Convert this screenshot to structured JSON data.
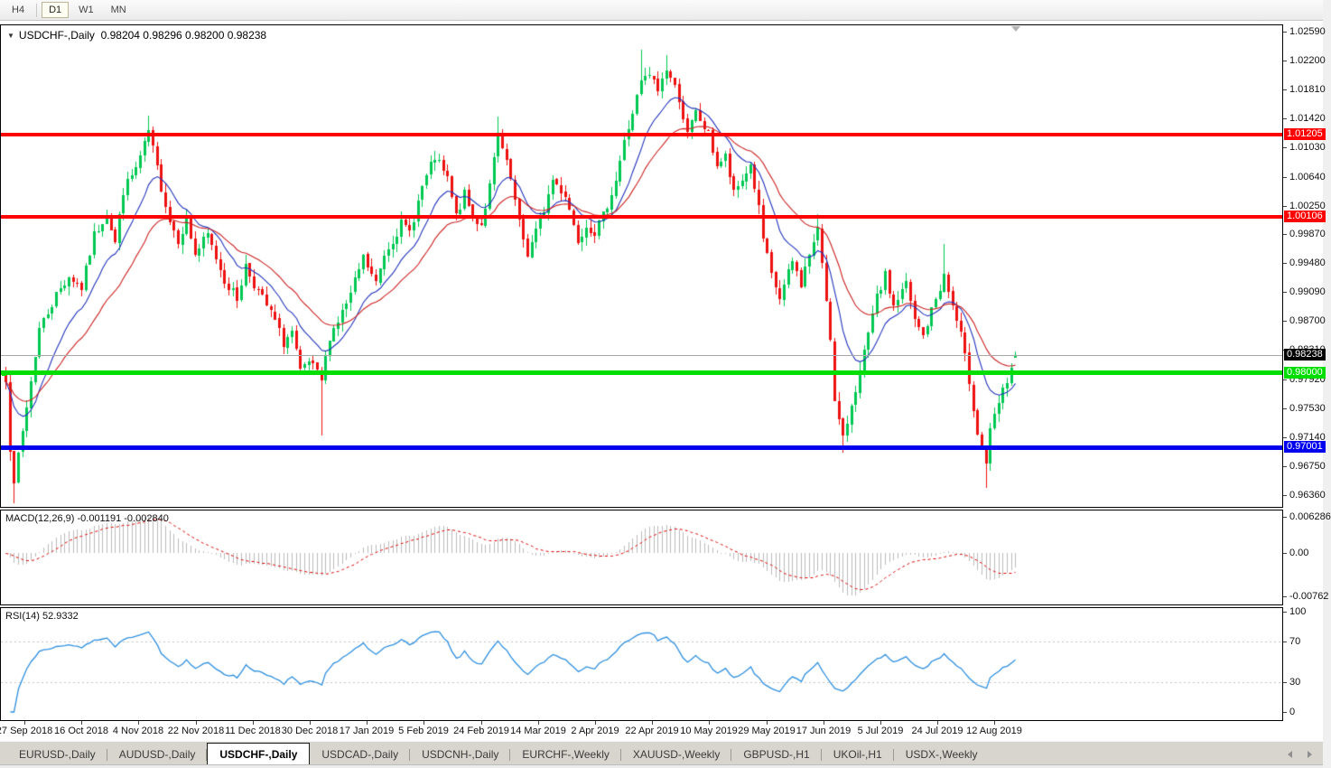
{
  "toolbar": {
    "timeframes": [
      {
        "label": "H4",
        "active": false
      },
      {
        "label": "D1",
        "active": true
      },
      {
        "label": "W1",
        "active": false
      },
      {
        "label": "MN",
        "active": false
      }
    ]
  },
  "chart": {
    "title_symbol": "USDCHF-,Daily",
    "title_quote": "0.98204 0.98296 0.98200 0.98238",
    "macd_label_name": "MACD(12,26,9)",
    "macd_label_values": "-0.001191 -0.002840",
    "rsi_label_name": "RSI(14)",
    "rsi_label_value": "52.9332"
  },
  "axes": {
    "price_ticks": [
      "1.02590",
      "1.02200",
      "1.01810",
      "1.01420",
      "1.01030",
      "1.00640",
      "1.00250",
      "0.99870",
      "0.99480",
      "0.99090",
      "0.98700",
      "0.98310",
      "0.97920",
      "0.97530",
      "0.97140",
      "0.96750",
      "0.96360"
    ],
    "macd_ticks": [
      {
        "v": 0.006286,
        "label": "0.006286"
      },
      {
        "v": 0,
        "label": "0.00"
      },
      {
        "v": -0.00762,
        "label": "-0.00762"
      }
    ],
    "rsi_ticks": [
      {
        "v": 100,
        "label": "100"
      },
      {
        "v": 70,
        "label": "70"
      },
      {
        "v": 30,
        "label": "30"
      },
      {
        "v": 0,
        "label": "0"
      }
    ],
    "date_ticks": [
      "27 Sep 2018",
      "16 Oct 2018",
      "4 Nov 2018",
      "22 Nov 2018",
      "11 Dec 2018",
      "30 Dec 2018",
      "17 Jan 2019",
      "5 Feb 2019",
      "24 Feb 2019",
      "14 Mar 2019",
      "2 Apr 2019",
      "22 Apr 2019",
      "10 May 2019",
      "29 May 2019",
      "17 Jun 2019",
      "5 Jul 2019",
      "24 Jul 2019",
      "12 Aug 2019"
    ]
  },
  "price_labels": [
    {
      "text": "1.01205",
      "price": 1.01205,
      "bg": "#ff0000",
      "fg": "#ffffff"
    },
    {
      "text": "1.00106",
      "price": 1.00106,
      "bg": "#ff0000",
      "fg": "#ffffff"
    },
    {
      "text": "0.98238",
      "price": 0.98238,
      "bg": "#000000",
      "fg": "#ffffff"
    },
    {
      "text": "0.98000",
      "price": 0.98,
      "bg": "#00dd00",
      "fg": "#ffffff"
    },
    {
      "text": "0.97001",
      "price": 0.97001,
      "bg": "#0000ee",
      "fg": "#ffffff"
    }
  ],
  "chart_data": {
    "type": "candlestick",
    "symbol": "USDCHF",
    "timeframe": "Daily",
    "last_quote": {
      "open": 0.98204,
      "high": 0.98296,
      "low": 0.982,
      "close": 0.98238
    },
    "y_axis": {
      "min": 0.96214,
      "max": 1.02675
    },
    "x_axis": {
      "start": "27 Sep 2018",
      "end": "23 Aug 2019",
      "bars_total": 241
    },
    "horizontal_lines": [
      {
        "price": 1.01205,
        "color": "#ff0000",
        "thickness": 4
      },
      {
        "price": 1.00106,
        "color": "#ff0000",
        "thickness": 4
      },
      {
        "price": 0.98,
        "color": "#00dd00",
        "thickness": 5,
        "selected": true
      },
      {
        "price": 0.97001,
        "color": "#0000ee",
        "thickness": 5
      }
    ],
    "current_price_line": {
      "price": 0.98238,
      "color": "#a8a8a8"
    },
    "colors": {
      "up": "#00c853",
      "down": "#ee1111"
    },
    "close_waypoints": [
      [
        0,
        0.9795
      ],
      [
        1,
        0.97
      ],
      [
        2,
        0.9645
      ],
      [
        3,
        0.969
      ],
      [
        5,
        0.9755
      ],
      [
        8,
        0.986
      ],
      [
        12,
        0.9905
      ],
      [
        15,
        0.993
      ],
      [
        18,
        0.9915
      ],
      [
        21,
        0.9985
      ],
      [
        24,
        1.0015
      ],
      [
        26,
        0.9975
      ],
      [
        28,
        1.0045
      ],
      [
        31,
        1.0075
      ],
      [
        33,
        1.0105
      ],
      [
        34,
        1.0125
      ],
      [
        37,
        1.005
      ],
      [
        39,
        1.0005
      ],
      [
        41,
        0.998
      ],
      [
        43,
        1.0005
      ],
      [
        45,
        0.996
      ],
      [
        48,
        0.9985
      ],
      [
        52,
        0.9925
      ],
      [
        55,
        0.99
      ],
      [
        57,
        0.9945
      ],
      [
        59,
        0.992
      ],
      [
        61,
        0.99
      ],
      [
        64,
        0.987
      ],
      [
        66,
        0.984
      ],
      [
        68,
        0.9855
      ],
      [
        70,
        0.98
      ],
      [
        72,
        0.9815
      ],
      [
        75,
        0.979
      ],
      [
        77,
        0.985
      ],
      [
        79,
        0.987
      ],
      [
        82,
        0.9905
      ],
      [
        85,
        0.9955
      ],
      [
        88,
        0.992
      ],
      [
        90,
        0.996
      ],
      [
        94,
        1.0
      ],
      [
        96,
        0.999
      ],
      [
        99,
        1.005
      ],
      [
        102,
        1.009
      ],
      [
        105,
        1.006
      ],
      [
        107,
        1.001
      ],
      [
        109,
        1.004
      ],
      [
        111,
        1.001
      ],
      [
        113,
        1.0
      ],
      [
        115,
        1.005
      ],
      [
        117,
        1.012
      ],
      [
        120,
        1.006
      ],
      [
        122,
        1.0
      ],
      [
        124,
        0.996
      ],
      [
        126,
        0.999
      ],
      [
        128,
        1.002
      ],
      [
        130,
        1.006
      ],
      [
        133,
        1.004
      ],
      [
        136,
        0.998
      ],
      [
        138,
        1.0
      ],
      [
        140,
        0.999
      ],
      [
        142,
        1.001
      ],
      [
        145,
        1.006
      ],
      [
        147,
        1.011
      ],
      [
        149,
        1.015
      ],
      [
        151,
        1.019
      ],
      [
        153,
        1.02
      ],
      [
        155,
        1.018
      ],
      [
        157,
        1.021
      ],
      [
        160,
        1.017
      ],
      [
        162,
        1.012
      ],
      [
        164,
        1.015
      ],
      [
        167,
        1.012
      ],
      [
        169,
        1.008
      ],
      [
        171,
        1.009
      ],
      [
        173,
        1.004
      ],
      [
        177,
        1.008
      ],
      [
        179,
        1.002
      ],
      [
        180,
        0.998
      ],
      [
        182,
        0.993
      ],
      [
        184,
        0.99
      ],
      [
        187,
        0.995
      ],
      [
        189,
        0.992
      ],
      [
        191,
        0.996
      ],
      [
        193,
        0.999
      ],
      [
        194,
        0.995
      ],
      [
        196,
        0.985
      ],
      [
        197,
        0.976
      ],
      [
        199,
        0.971
      ],
      [
        201,
        0.976
      ],
      [
        203,
        0.98
      ],
      [
        205,
        0.985
      ],
      [
        207,
        0.99
      ],
      [
        209,
        0.993
      ],
      [
        211,
        0.989
      ],
      [
        214,
        0.992
      ],
      [
        216,
        0.987
      ],
      [
        218,
        0.985
      ],
      [
        221,
        0.99
      ],
      [
        223,
        0.993
      ],
      [
        225,
        0.989
      ],
      [
        227,
        0.985
      ],
      [
        229,
        0.979
      ],
      [
        231,
        0.972
      ],
      [
        233,
        0.968
      ],
      [
        234,
        0.972
      ],
      [
        236,
        0.976
      ],
      [
        238,
        0.979
      ],
      [
        240,
        0.98238
      ]
    ],
    "wick_overrides": {
      "2": {
        "low": 0.9625
      },
      "34": {
        "high": 1.0146
      },
      "75": {
        "low": 0.9716
      },
      "117": {
        "high": 1.0145
      },
      "151": {
        "high": 1.0235
      },
      "157": {
        "high": 1.0228
      },
      "193": {
        "high": 1.0014
      },
      "199": {
        "low": 0.9693
      },
      "223": {
        "high": 0.9974
      },
      "233": {
        "low": 0.9646
      }
    },
    "indicators": {
      "ma_fast": {
        "type": "EMA",
        "period": 12,
        "color": "#2233bb"
      },
      "ma_slow": {
        "type": "EMA",
        "period": 26,
        "color": "#cc2222"
      },
      "macd": {
        "fast": 12,
        "slow": 26,
        "signal": 9,
        "current": -0.001191,
        "signal_current": -0.00284,
        "hist_color": "#bbbbbb",
        "signal_color": "#dd0000",
        "y_range": [
          -0.00762,
          0.006286
        ]
      },
      "rsi": {
        "period": 14,
        "current": 52.9332,
        "color": "#2e8fdf",
        "levels": [
          70,
          30
        ],
        "level_color": "#c4c4c4",
        "range": [
          0,
          100
        ]
      }
    }
  },
  "tabs": {
    "items": [
      {
        "label": "EURUSD-,Daily",
        "active": false
      },
      {
        "label": "AUDUSD-,Daily",
        "active": false
      },
      {
        "label": "USDCHF-,Daily",
        "active": true
      },
      {
        "label": "USDCAD-,Daily",
        "active": false
      },
      {
        "label": "USDCNH-,Daily",
        "active": false
      },
      {
        "label": "EURCHF-,Weekly",
        "active": false
      },
      {
        "label": "XAUUSD-,Weekly",
        "active": false
      },
      {
        "label": "GBPUSD-,H1",
        "active": false
      },
      {
        "label": "UKOil-,H1",
        "active": false
      },
      {
        "label": "USDX-,Weekly",
        "active": false
      }
    ]
  }
}
